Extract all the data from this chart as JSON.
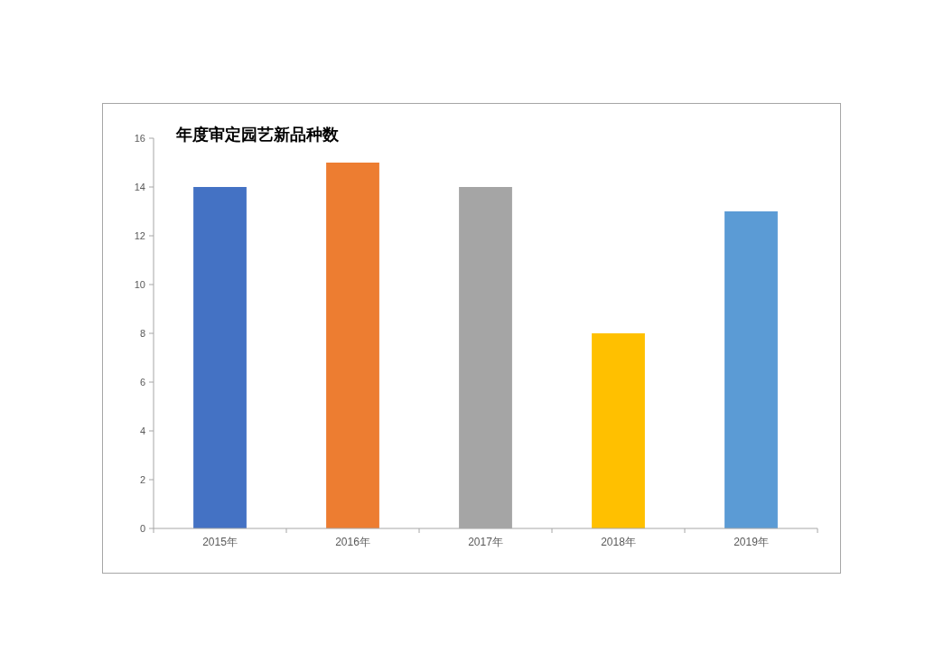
{
  "chart_data": {
    "type": "bar",
    "title": "年度审定园艺新品种数",
    "categories": [
      "2015年",
      "2016年",
      "2017年",
      "2018年",
      "2019年"
    ],
    "values": [
      14,
      15,
      14,
      8,
      13
    ],
    "colors": [
      "#4472c4",
      "#ed7d31",
      "#a5a5a5",
      "#ffc000",
      "#5b9bd5"
    ],
    "ylim": [
      0,
      16
    ],
    "yticks": [
      0,
      2,
      4,
      6,
      8,
      10,
      12,
      14,
      16
    ]
  }
}
